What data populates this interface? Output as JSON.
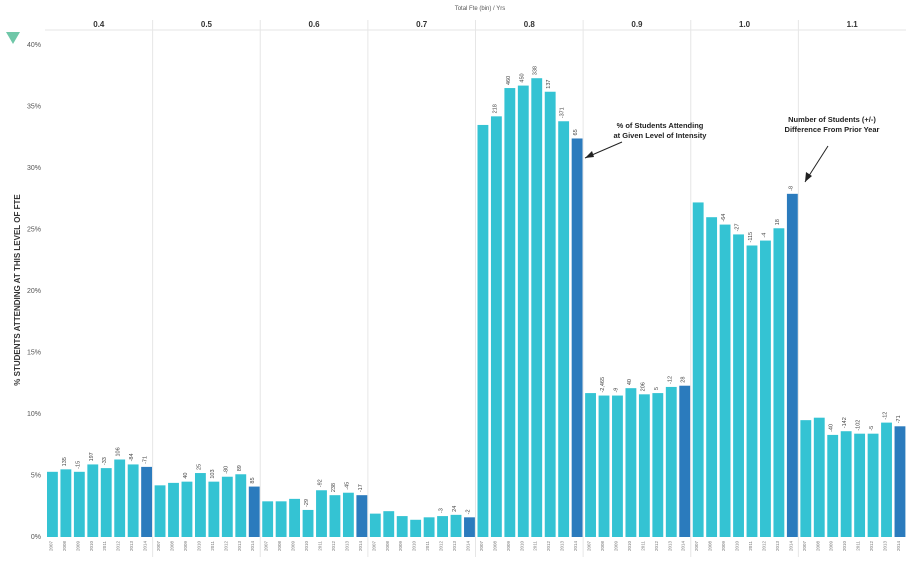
{
  "chart_data": {
    "type": "bar",
    "top_axis_title": "Total Fte (bin) / Yrs",
    "ylabel": "% STUDENTS ATTENDING AT THIS LEVEL OF FTE",
    "ylim": [
      0,
      41
    ],
    "yticks": [
      "0%",
      "5%",
      "10%",
      "15%",
      "20%",
      "25%",
      "30%",
      "35%",
      "40%"
    ],
    "years": [
      "2007",
      "2008",
      "2009",
      "2010",
      "2011",
      "2012",
      "2013",
      "2014"
    ],
    "panes": [
      {
        "label": "0.4",
        "values": [
          5.3,
          5.5,
          5.3,
          5.9,
          5.6,
          6.3,
          5.9,
          5.7
        ],
        "labels": [
          "",
          "135",
          "-15",
          "197",
          "-33",
          "106",
          "-84",
          "-71"
        ]
      },
      {
        "label": "0.5",
        "values": [
          4.2,
          4.4,
          4.5,
          5.2,
          4.5,
          4.9,
          5.1,
          4.1
        ],
        "labels": [
          "",
          "",
          "40",
          "25",
          "103",
          "-80",
          "89",
          "85"
        ]
      },
      {
        "label": "0.6",
        "values": [
          2.9,
          2.9,
          3.1,
          2.2,
          3.8,
          3.4,
          3.6,
          3.4
        ],
        "labels": [
          "",
          "",
          "",
          "-29",
          "-92",
          "238",
          "-45",
          "-17"
        ]
      },
      {
        "label": "0.7",
        "values": [
          1.9,
          2.1,
          1.7,
          1.4,
          1.6,
          1.7,
          1.8,
          1.6
        ],
        "labels": [
          "",
          "",
          "",
          "",
          " ",
          "-3",
          "24",
          "-2"
        ]
      },
      {
        "label": "0.8",
        "values": [
          33.5,
          34.2,
          36.5,
          36.7,
          37.3,
          36.2,
          33.8,
          32.4
        ],
        "labels": [
          "",
          "218",
          "460",
          "450",
          "338",
          "137",
          "-371",
          "65"
        ]
      },
      {
        "label": "0.9",
        "values": [
          11.7,
          11.5,
          11.5,
          12.1,
          11.6,
          11.7,
          12.2,
          12.3
        ],
        "labels": [
          "",
          "-2,465",
          "-9",
          "40",
          "206",
          "5",
          "-12",
          "28"
        ]
      },
      {
        "label": "1.0",
        "values": [
          27.2,
          26.0,
          25.4,
          24.6,
          23.7,
          24.1,
          25.1,
          27.9
        ],
        "labels": [
          "",
          "",
          "-64",
          "-27",
          "-115",
          "-4",
          "18",
          "-8"
        ]
      },
      {
        "label": "1.1",
        "values": [
          9.5,
          9.7,
          8.3,
          8.6,
          8.4,
          8.4,
          9.3,
          9.0
        ],
        "labels": [
          "",
          "",
          "-40",
          "-142",
          "-102",
          "-5",
          "-12",
          "-71"
        ]
      }
    ],
    "annotations": [
      {
        "lines": [
          "% of Students Attending",
          "at Given Level of Intensity"
        ]
      },
      {
        "lines": [
          "Number of Students (+/-)",
          "Difference From Prior Year"
        ]
      }
    ],
    "colors": {
      "bar": "#34c3d3",
      "highlight": "#2b7bbd",
      "grid": "#e6e6e6",
      "text": "#333333"
    }
  }
}
